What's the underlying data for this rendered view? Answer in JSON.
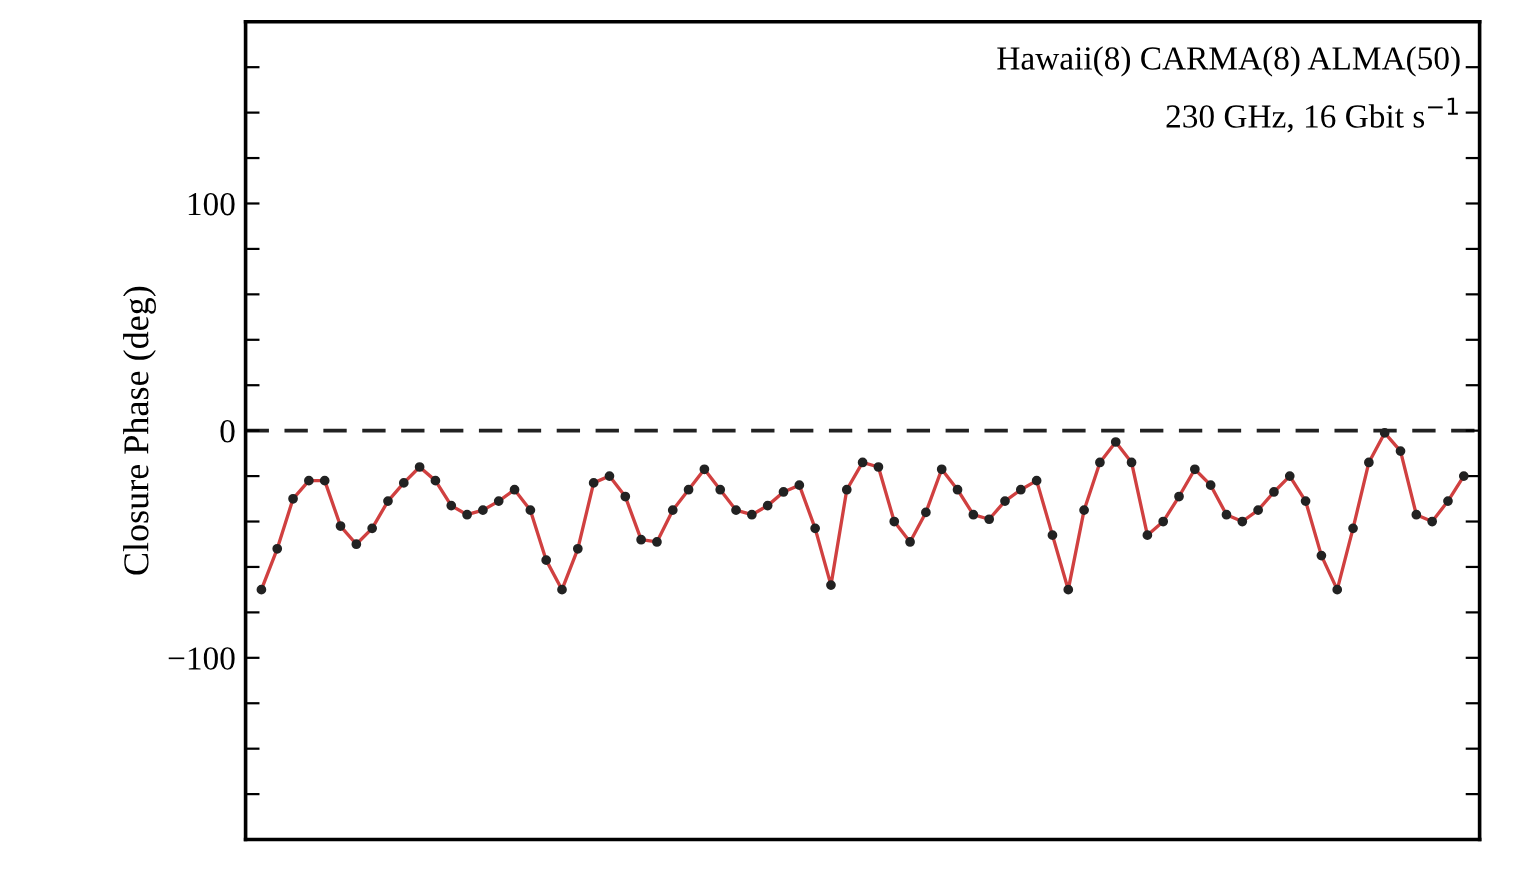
{
  "chart_data": {
    "type": "line",
    "ylabel": "Closure Phase (deg)",
    "annotations": [
      "Hawaii(8) CARMA(8) ALMA(50)",
      "230 GHz, 16 Gbit s$^{−1}$"
    ],
    "categories": [
      null,
      null,
      null,
      null,
      null,
      null,
      null,
      null,
      null,
      null,
      null,
      null,
      null,
      null,
      null,
      null,
      null,
      null,
      null,
      null,
      null,
      null,
      null,
      null,
      null,
      null,
      null,
      null,
      null,
      null,
      null,
      null,
      null,
      null,
      null,
      null,
      null,
      null,
      null,
      null,
      null,
      null,
      null,
      null,
      null,
      null,
      null,
      null,
      null,
      null,
      null,
      null,
      null,
      null,
      null,
      null,
      null,
      null,
      null,
      null,
      null,
      null,
      null,
      null,
      null,
      null,
      null,
      null,
      null,
      null,
      null,
      null,
      null,
      null,
      null,
      null,
      null
    ],
    "series": [
      {
        "color": "#d04040",
        "marker": "circle",
        "line_style": "solid",
        "values": [
          -70,
          -52,
          -30,
          -22,
          -22,
          -42,
          -50,
          -43,
          -31,
          -23,
          -16,
          -22,
          -33,
          -37,
          -35,
          -31,
          -26,
          -35,
          -57,
          -70,
          -52,
          -23,
          -20,
          -29,
          -48,
          -49,
          -35,
          -26,
          -17,
          -26,
          -35,
          -37,
          -33,
          -27,
          -24,
          -43,
          -68,
          -26,
          -14,
          -16,
          -40,
          -49,
          -36,
          -17,
          -26,
          -37,
          -39,
          -31,
          -26,
          -22,
          -46,
          -70,
          -35,
          -14,
          -5,
          -14,
          -46,
          -40,
          -29,
          -17,
          -24,
          -37,
          -40,
          -35,
          -27,
          -20,
          -31,
          -55,
          -70,
          -43,
          -14,
          -1,
          -9,
          -37,
          -40,
          -31,
          -20
        ]
      }
    ],
    "ylim": [
      -180,
      180
    ],
    "yticks": [
      {
        "value": -160,
        "label": null
      },
      {
        "value": -140,
        "label": null
      },
      {
        "value": -120,
        "label": null
      },
      {
        "value": -100,
        "label": "−100"
      },
      {
        "value": -80,
        "label": null
      },
      {
        "value": -60,
        "label": null
      },
      {
        "value": -40,
        "label": null
      },
      {
        "value": -20,
        "label": null
      },
      0,
      {
        "value": 20,
        "label": null
      },
      {
        "value": 40,
        "label": null
      },
      {
        "value": 60,
        "label": null
      },
      {
        "value": 80,
        "label": null
      },
      100,
      {
        "value": 120,
        "label": null
      },
      {
        "value": 140,
        "label": null
      },
      {
        "value": 160,
        "label": null
      }
    ],
    "tick_labels": "y",
    "ref_lines": [
      {
        "axis": "y",
        "value": 0,
        "color": "#222222",
        "line_style": "dashed"
      }
    ],
    "grid": false
  }
}
